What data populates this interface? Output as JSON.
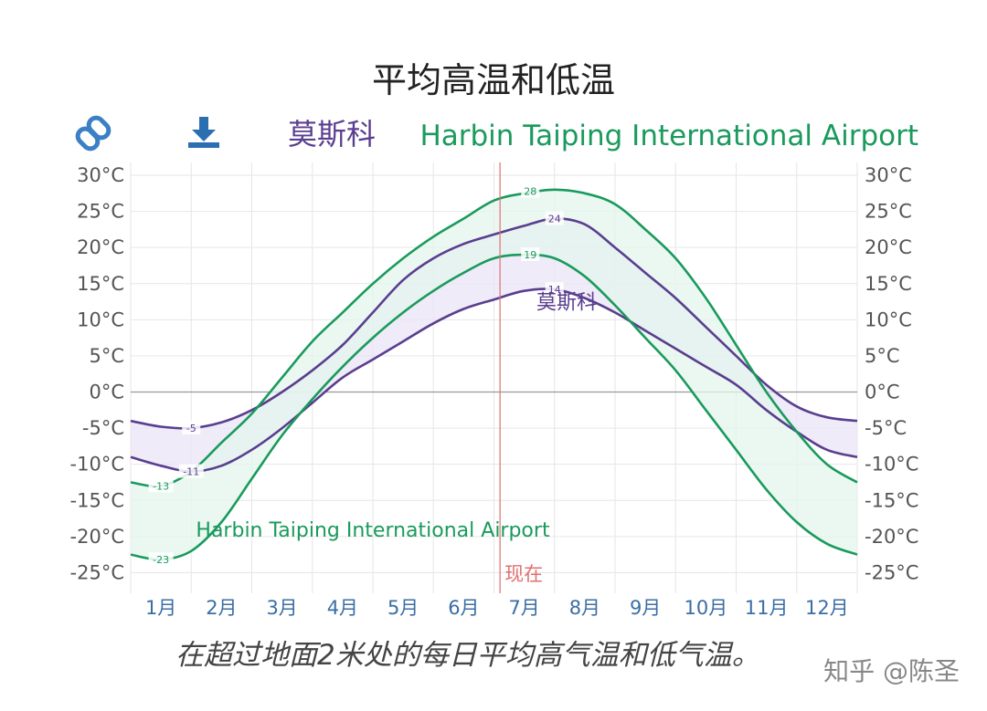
{
  "chart_data": {
    "type": "line",
    "title": "平均高温和低温",
    "caption": "在超过地面2米处的每日平均高气温和低气温。",
    "watermark": "知乎 @陈圣",
    "now_label": "现在",
    "now_month": 6.1,
    "ylim": [
      -28,
      32
    ],
    "y_ticks": [
      30,
      25,
      20,
      15,
      10,
      5,
      0,
      -5,
      -10,
      -15,
      -20,
      -25
    ],
    "y_tick_labels": [
      "30°C",
      "25°C",
      "20°C",
      "15°C",
      "10°C",
      "5°C",
      "0°C",
      "-5°C",
      "-10°C",
      "-15°C",
      "-20°C",
      "-25°C"
    ],
    "months": [
      "1月",
      "2月",
      "3月",
      "4月",
      "5月",
      "6月",
      "7月",
      "8月",
      "9月",
      "10月",
      "11月",
      "12月"
    ],
    "locations": [
      {
        "name": "莫斯科",
        "color": "#5a3e8f",
        "band_color": "#e9e4f5"
      },
      {
        "name": "Harbin Taiping International Airport",
        "color": "#1a9a5c",
        "band_color": "#e4f5ee"
      }
    ],
    "series": [
      {
        "name": "莫斯科",
        "kind": "high",
        "location": 0,
        "x": [
          0,
          0.5,
          1.0,
          1.5,
          2.0,
          2.5,
          3.0,
          3.5,
          4.0,
          4.5,
          5.0,
          5.5,
          6.0,
          6.5,
          7.0,
          7.5,
          8.0,
          8.5,
          9.0,
          9.5,
          10.0,
          10.5,
          11.0,
          11.5,
          12.0
        ],
        "values": [
          -4,
          -4.8,
          -5,
          -4.2,
          -2.5,
          0,
          3,
          6.5,
          11,
          15.5,
          18.5,
          20.5,
          21.8,
          23,
          24,
          23.2,
          20,
          16.5,
          13,
          9,
          5,
          1,
          -2,
          -3.5,
          -4
        ]
      },
      {
        "name": "莫斯科",
        "kind": "low",
        "location": 0,
        "x": [
          0,
          0.5,
          1.0,
          1.5,
          2.0,
          2.5,
          3.0,
          3.5,
          4.0,
          4.5,
          5.0,
          5.5,
          6.0,
          6.5,
          7.0,
          7.5,
          8.0,
          8.5,
          9.0,
          9.5,
          10.0,
          10.5,
          11.0,
          11.5,
          12.0
        ],
        "values": [
          -9,
          -10.2,
          -11,
          -10.2,
          -8,
          -5,
          -1.5,
          2,
          4.5,
          7,
          9.5,
          11.5,
          12.8,
          14,
          14.2,
          13,
          11,
          8.5,
          6,
          3.5,
          1,
          -2.5,
          -5.5,
          -8,
          -9
        ]
      },
      {
        "name": "Harbin Taiping International Airport",
        "kind": "high",
        "location": 1,
        "x": [
          0,
          0.5,
          1.0,
          1.5,
          2.0,
          2.5,
          3.0,
          3.5,
          4.0,
          4.5,
          5.0,
          5.5,
          6.0,
          6.5,
          7.0,
          7.5,
          8.0,
          8.5,
          9.0,
          9.5,
          10.0,
          10.5,
          11.0,
          11.5,
          12.0
        ],
        "values": [
          -12.5,
          -13,
          -11,
          -7,
          -3,
          2,
          7,
          11,
          15,
          18.5,
          21.5,
          24,
          26.5,
          27.5,
          28,
          27.5,
          26,
          22.5,
          18.5,
          13,
          6.5,
          0,
          -5.5,
          -10,
          -12.5
        ]
      },
      {
        "name": "Harbin Taiping International Airport",
        "kind": "low",
        "location": 1,
        "x": [
          0,
          0.5,
          1.0,
          1.5,
          2.0,
          2.5,
          3.0,
          3.5,
          4.0,
          4.5,
          5.0,
          5.5,
          6.0,
          6.5,
          7.0,
          7.5,
          8.0,
          8.5,
          9.0,
          9.5,
          10.0,
          10.5,
          11.0,
          11.5,
          12.0
        ],
        "values": [
          -22.5,
          -23.2,
          -22,
          -18,
          -12,
          -6,
          -1,
          3.5,
          7.5,
          11,
          14,
          16.5,
          18.5,
          19,
          18.5,
          16,
          12,
          7.5,
          3,
          -2.5,
          -8,
          -13.5,
          -18,
          -21,
          -22.5
        ]
      }
    ],
    "data_labels": [
      {
        "text": "-5",
        "x": 1.0,
        "y": -5,
        "location": 0
      },
      {
        "text": "-11",
        "x": 1.0,
        "y": -11,
        "location": 0
      },
      {
        "text": "24",
        "x": 7.0,
        "y": 24,
        "location": 0
      },
      {
        "text": "14",
        "x": 7.0,
        "y": 14.2,
        "location": 0
      },
      {
        "text": "-13",
        "x": 0.5,
        "y": -13,
        "location": 1
      },
      {
        "text": "-23",
        "x": 0.5,
        "y": -23.2,
        "location": 1
      },
      {
        "text": "28",
        "x": 6.6,
        "y": 27.8,
        "location": 1
      },
      {
        "text": "19",
        "x": 6.6,
        "y": 19,
        "location": 1
      }
    ],
    "annotations": [
      {
        "text": "莫斯科",
        "x": 7.2,
        "y": 11.5,
        "location": 0
      },
      {
        "text": "Harbin Taiping International Airport",
        "x": 4.0,
        "y": -20,
        "location": 1
      }
    ],
    "grid": true,
    "legend_position": "top"
  },
  "toolbar": {
    "link_icon": "link-icon",
    "download_icon": "download-icon"
  }
}
